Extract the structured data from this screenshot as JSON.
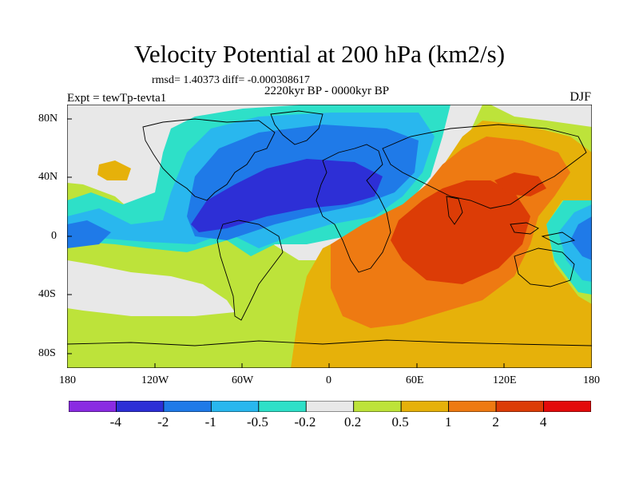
{
  "title": "Velocity Potential at 200 hPa (km2/s)",
  "stats": "rmsd= 1.40373 diff= -0.000308617",
  "period": "2220kyr BP - 0000kyr BP",
  "expt": "Expt = tewTp-tevta1",
  "season": "DJF",
  "lat_labels": [
    "80N",
    "40N",
    "0",
    "40S",
    "80S"
  ],
  "lon_labels": [
    "180",
    "120W",
    "60W",
    "0",
    "60E",
    "120E",
    "180"
  ],
  "colorbar": {
    "labels": [
      "-4",
      "-2",
      "-1",
      "-0.5",
      "-0.2",
      "0.2",
      "0.5",
      "1",
      "2",
      "4"
    ],
    "colors": [
      "#8a2be2",
      "#2d2fd6",
      "#1f7ae8",
      "#29b7ee",
      "#2ee0c8",
      "#e8e8e8",
      "#bde33a",
      "#e6b10a",
      "#ee7a12",
      "#dc3c06",
      "#e30b0b"
    ]
  }
}
